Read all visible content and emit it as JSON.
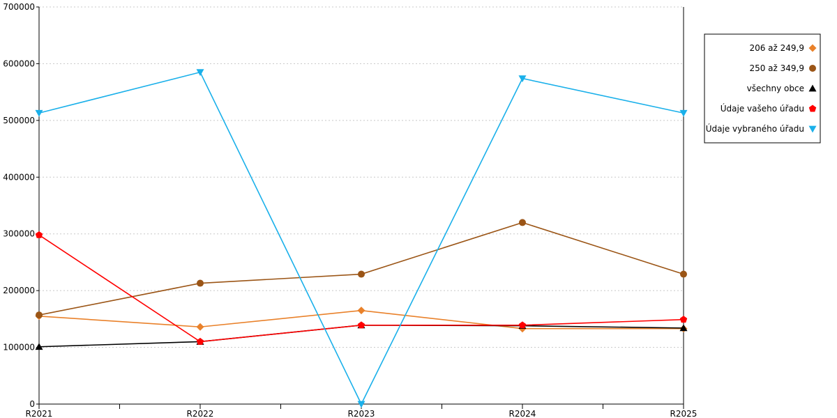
{
  "chart_data": {
    "type": "line",
    "categories": [
      "R2021",
      "R2022",
      "R2023",
      "R2024",
      "R2025"
    ],
    "ylim": [
      0,
      700000
    ],
    "yticks": [
      0,
      100000,
      200000,
      300000,
      400000,
      500000,
      600000,
      700000
    ],
    "ytick_labels": [
      "0",
      "100000",
      "200000",
      "300000",
      "400000",
      "500000",
      "600000",
      "700000"
    ],
    "grid": "horizontal-dotted",
    "legend_position": "right",
    "series": [
      {
        "name": "206 až 249,9",
        "values": [
          155000,
          136000,
          165000,
          133000,
          133000
        ],
        "color": "#e9812a",
        "marker": "diamond"
      },
      {
        "name": "250 až 349,9",
        "values": [
          157000,
          213000,
          229000,
          320000,
          229000
        ],
        "color": "#9b5516",
        "marker": "circle"
      },
      {
        "name": "všechny obce",
        "values": [
          101000,
          110000,
          139000,
          138000,
          134000
        ],
        "color": "#000000",
        "marker": "triangle-up"
      },
      {
        "name": "Údaje vašeho úřadu",
        "values": [
          298000,
          110000,
          139000,
          139000,
          149000
        ],
        "color": "#ff0000",
        "marker": "pentagon"
      },
      {
        "name": "Údaje vybraného úřadu",
        "values": [
          513000,
          585000,
          0,
          574000,
          513000
        ],
        "color": "#1ab0ea",
        "marker": "triangle-down"
      }
    ]
  }
}
